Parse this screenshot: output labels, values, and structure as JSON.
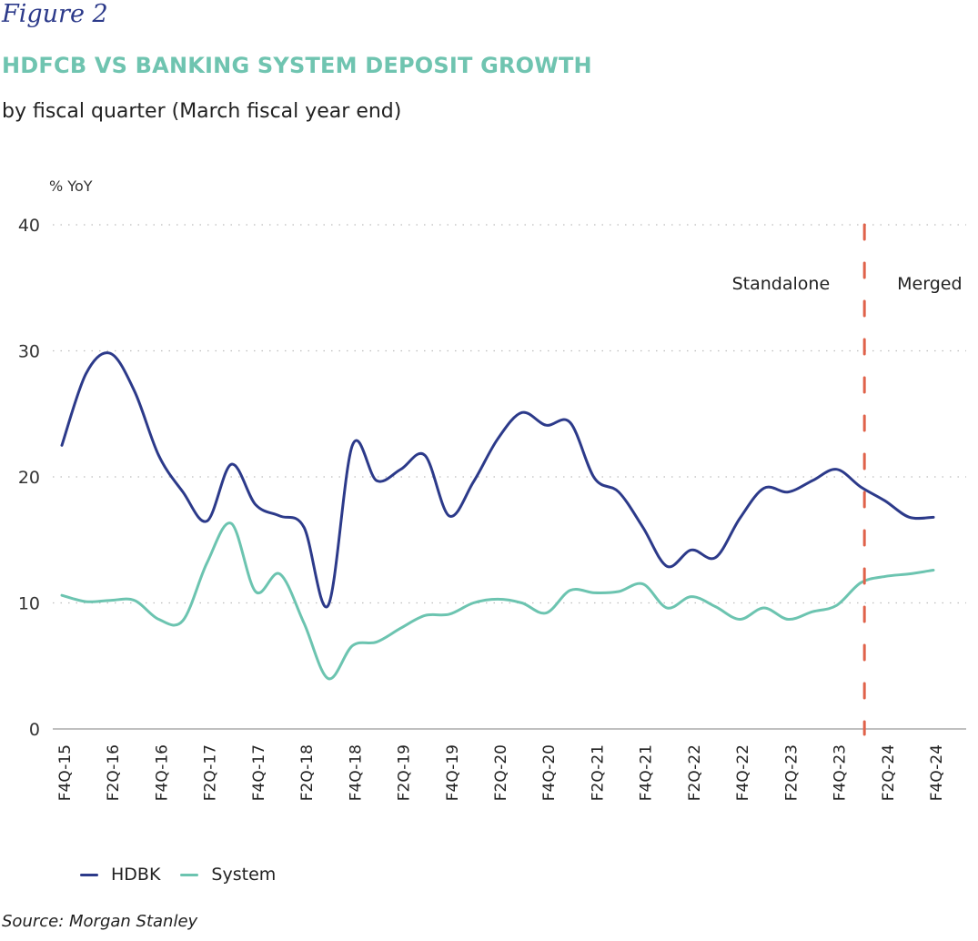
{
  "figure_label": "Figure 2",
  "title": "HDFCB VS BANKING SYSTEM DEPOSIT GROWTH",
  "subtitle": "by fiscal quarter (March fiscal year end)",
  "source": "Source: Morgan Stanley",
  "colors": {
    "hdbk": "#2c3a8a",
    "system": "#6cc4b0",
    "divider": "#e0624a",
    "title": "#6fc4b0"
  },
  "chart_data": {
    "type": "line",
    "title": "HDFCB VS BANKING SYSTEM DEPOSIT GROWTH",
    "ylabel": "% YoY",
    "xlabel": "",
    "ylim": [
      0,
      40
    ],
    "yticks": [
      0,
      10,
      20,
      30,
      40
    ],
    "grid": true,
    "legend_position": "bottom-left",
    "x": [
      "F4Q-15",
      "F1Q-16",
      "F2Q-16",
      "F3Q-16",
      "F4Q-16",
      "F1Q-17",
      "F2Q-17",
      "F3Q-17",
      "F4Q-17",
      "F1Q-18",
      "F2Q-18",
      "F3Q-18",
      "F4Q-18",
      "F1Q-19",
      "F2Q-19",
      "F3Q-19",
      "F4Q-19",
      "F1Q-20",
      "F2Q-20",
      "F3Q-20",
      "F4Q-20",
      "F1Q-21",
      "F2Q-21",
      "F3Q-21",
      "F4Q-21",
      "F1Q-22",
      "F2Q-22",
      "F3Q-22",
      "F4Q-22",
      "F1Q-23",
      "F2Q-23",
      "F3Q-23",
      "F4Q-23",
      "F1Q-24",
      "F2Q-24",
      "F3Q-24",
      "F4Q-24"
    ],
    "tick_labels": [
      "F4Q-15",
      "F2Q-16",
      "F4Q-16",
      "F2Q-17",
      "F4Q-17",
      "F2Q-18",
      "F4Q-18",
      "F2Q-19",
      "F4Q-19",
      "F2Q-20",
      "F4Q-20",
      "F2Q-21",
      "F4Q-21",
      "F2Q-22",
      "F4Q-22",
      "F2Q-23",
      "F4Q-23",
      "F2Q-24",
      "F4Q-24"
    ],
    "series": [
      {
        "name": "HDBK",
        "values": [
          22.5,
          28.2,
          29.8,
          26.8,
          21.7,
          18.8,
          16.5,
          21.0,
          17.8,
          16.9,
          16.0,
          9.8,
          22.5,
          19.7,
          20.6,
          21.7,
          16.9,
          19.6,
          23.0,
          25.1,
          24.1,
          24.3,
          19.9,
          18.8,
          16.0,
          12.9,
          14.2,
          13.6,
          16.7,
          19.1,
          18.8,
          19.7,
          20.6,
          19.2,
          18.1,
          16.8,
          16.8
        ]
      },
      {
        "name": "System",
        "values": [
          10.6,
          10.1,
          10.2,
          10.2,
          8.7,
          8.6,
          13.2,
          16.3,
          10.9,
          12.3,
          8.4,
          4.0,
          6.6,
          6.9,
          8.0,
          9.0,
          9.1,
          10.0,
          10.3,
          10.0,
          9.2,
          11.0,
          10.8,
          10.9,
          11.5,
          9.6,
          10.5,
          9.7,
          8.7,
          9.6,
          8.7,
          9.3,
          9.8,
          11.6,
          12.1,
          12.3,
          12.6
        ]
      }
    ],
    "annotations": [
      {
        "type": "vertical-dashed-line",
        "at": "F1Q-24",
        "label_left": "Standalone",
        "label_right": "Merged"
      }
    ]
  }
}
